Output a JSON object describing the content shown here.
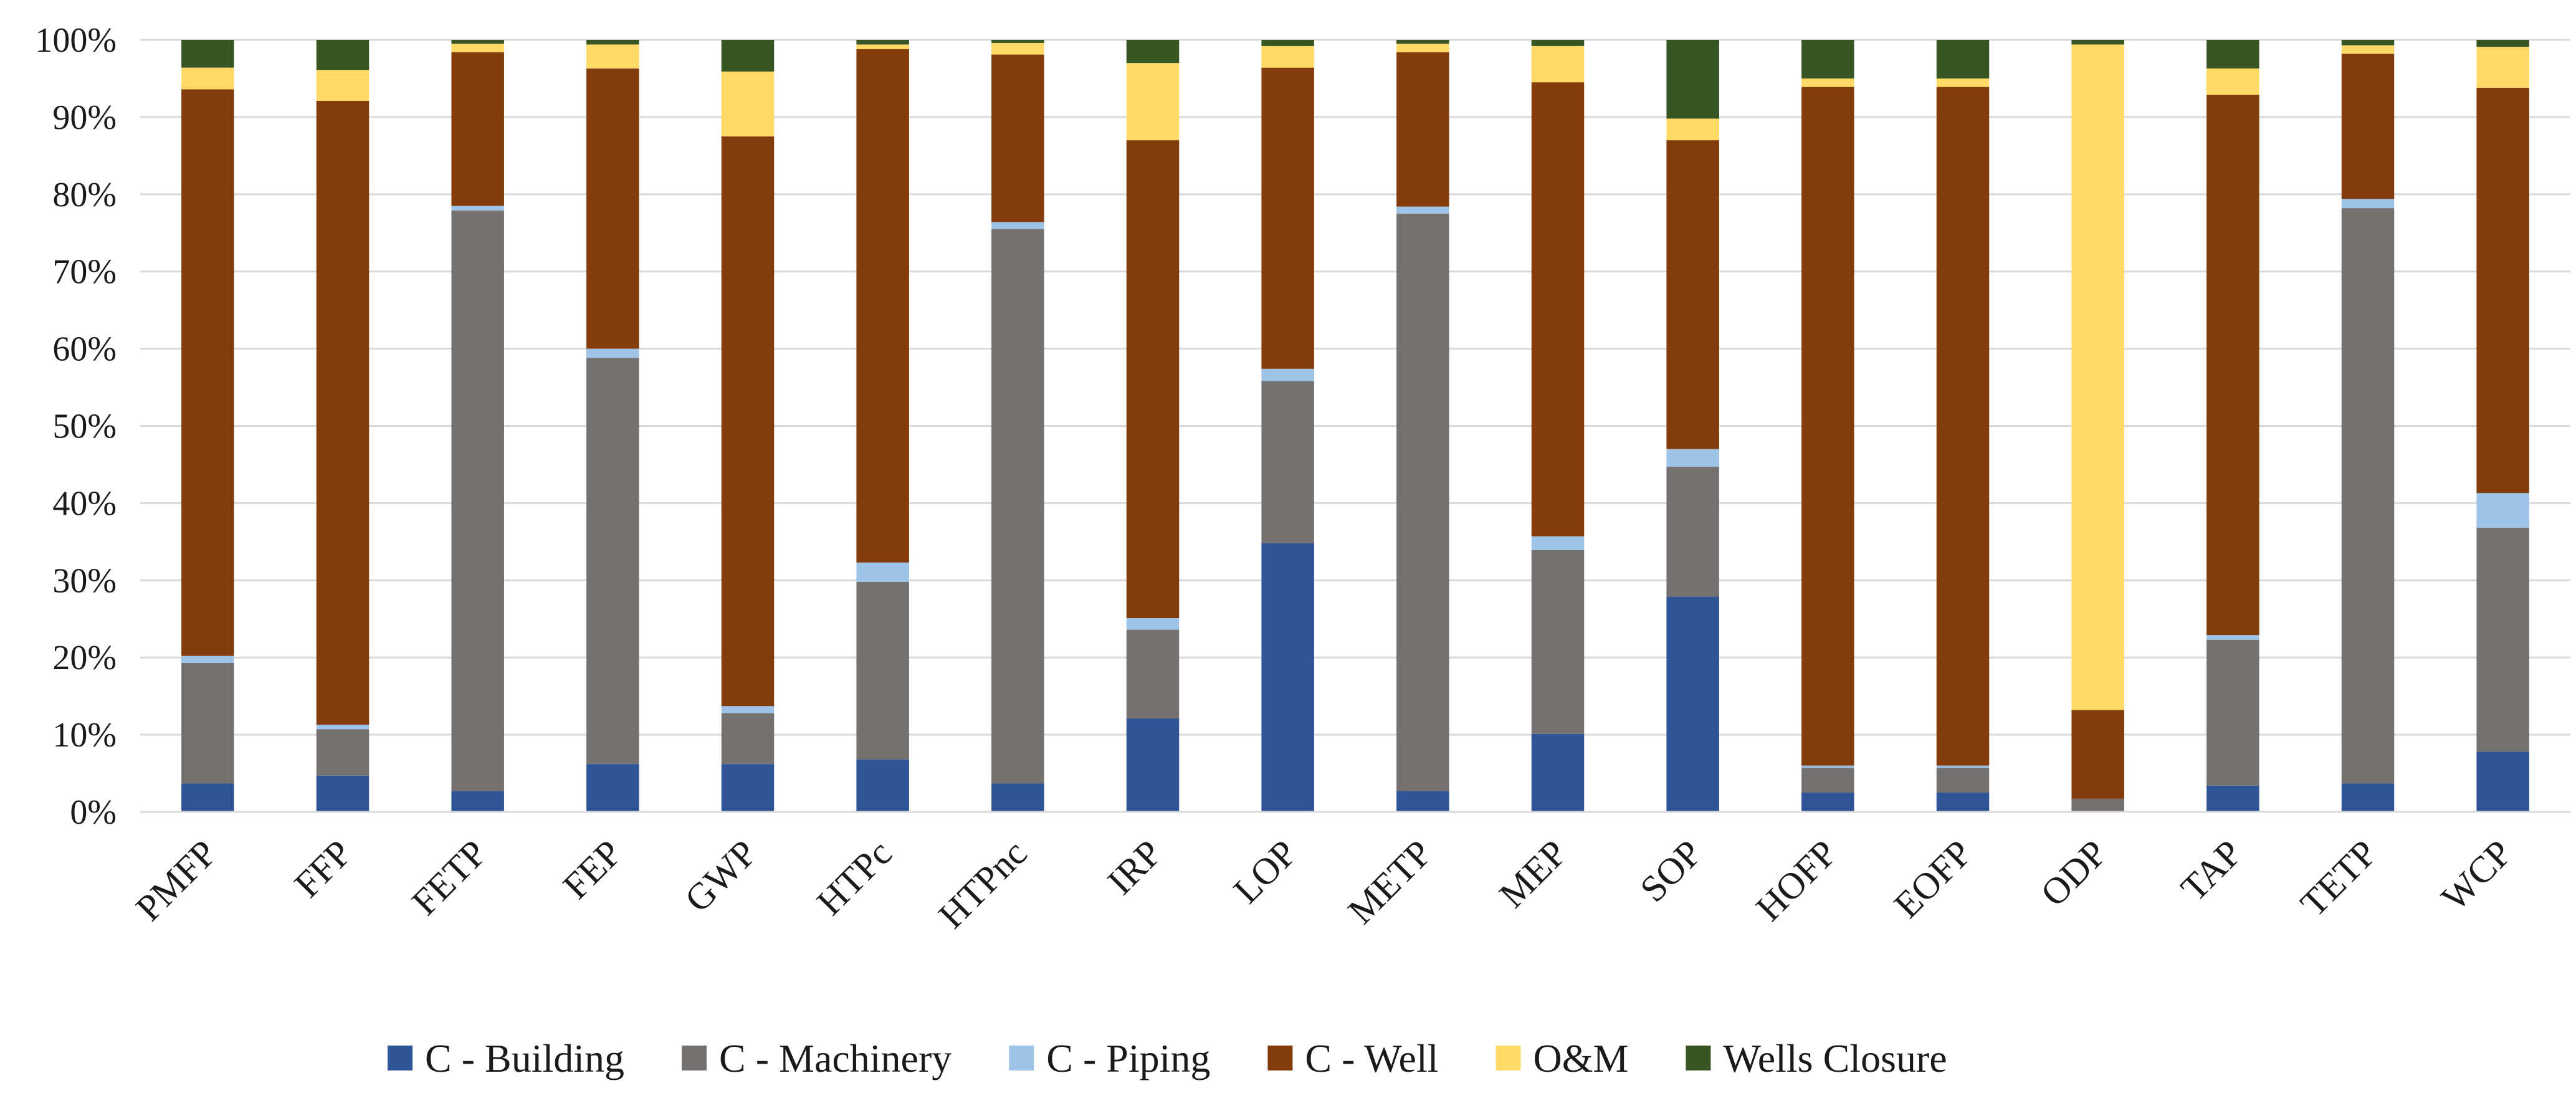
{
  "chart_data": {
    "type": "bar",
    "stacked": true,
    "percent_stacked": true,
    "title": "",
    "xlabel": "",
    "ylabel": "",
    "ylim": [
      0,
      100
    ],
    "y_ticks": [
      0,
      10,
      20,
      30,
      40,
      50,
      60,
      70,
      80,
      90,
      100
    ],
    "y_tick_suffix": "%",
    "grid": true,
    "legend_position": "bottom",
    "categories": [
      "PMFP",
      "FFP",
      "FETP",
      "FEP",
      "GWP",
      "HTPc",
      "HTPnc",
      "IRP",
      "LOP",
      "METP",
      "MEP",
      "SOP",
      "HOFP",
      "EOFP",
      "ODP",
      "TAP",
      "TETP",
      "WCP"
    ],
    "series": [
      {
        "name": "C - Building",
        "color": "#2F5597",
        "values": [
          3.7,
          4.7,
          2.7,
          6.2,
          6.2,
          6.8,
          3.7,
          12.1,
          34.8,
          2.7,
          10.1,
          27.9,
          2.5,
          2.5,
          0.0,
          3.4,
          3.7,
          7.8
        ]
      },
      {
        "name": "C - Machinery",
        "color": "#767171",
        "values": [
          15.6,
          6.0,
          75.2,
          52.6,
          6.6,
          23.0,
          71.8,
          11.5,
          21.0,
          74.8,
          23.8,
          16.8,
          3.2,
          3.2,
          1.7,
          18.9,
          74.5,
          29.0
        ]
      },
      {
        "name": "C - Piping",
        "color": "#9DC3E6",
        "values": [
          0.9,
          0.6,
          0.6,
          1.2,
          0.9,
          2.5,
          0.9,
          1.5,
          1.6,
          0.9,
          1.8,
          2.3,
          0.3,
          0.3,
          0.0,
          0.6,
          1.2,
          4.5
        ]
      },
      {
        "name": "C - Well",
        "color": "#843C0C",
        "values": [
          73.4,
          80.8,
          19.9,
          36.3,
          73.8,
          66.5,
          21.7,
          61.9,
          39.0,
          20.0,
          58.8,
          40.0,
          87.9,
          87.9,
          11.5,
          70.0,
          18.8,
          52.5
        ]
      },
      {
        "name": "O&M",
        "color": "#FFD966",
        "values": [
          2.8,
          4.0,
          1.1,
          3.1,
          8.4,
          0.6,
          1.5,
          10.0,
          2.8,
          1.1,
          4.7,
          2.8,
          1.1,
          1.1,
          86.2,
          3.4,
          1.1,
          5.3
        ]
      },
      {
        "name": "Wells Closure",
        "color": "#375623",
        "values": [
          3.6,
          3.9,
          0.5,
          0.6,
          4.1,
          0.6,
          0.4,
          3.0,
          0.8,
          0.5,
          0.8,
          10.2,
          5.0,
          5.0,
          0.6,
          3.7,
          0.7,
          0.9
        ]
      }
    ]
  }
}
